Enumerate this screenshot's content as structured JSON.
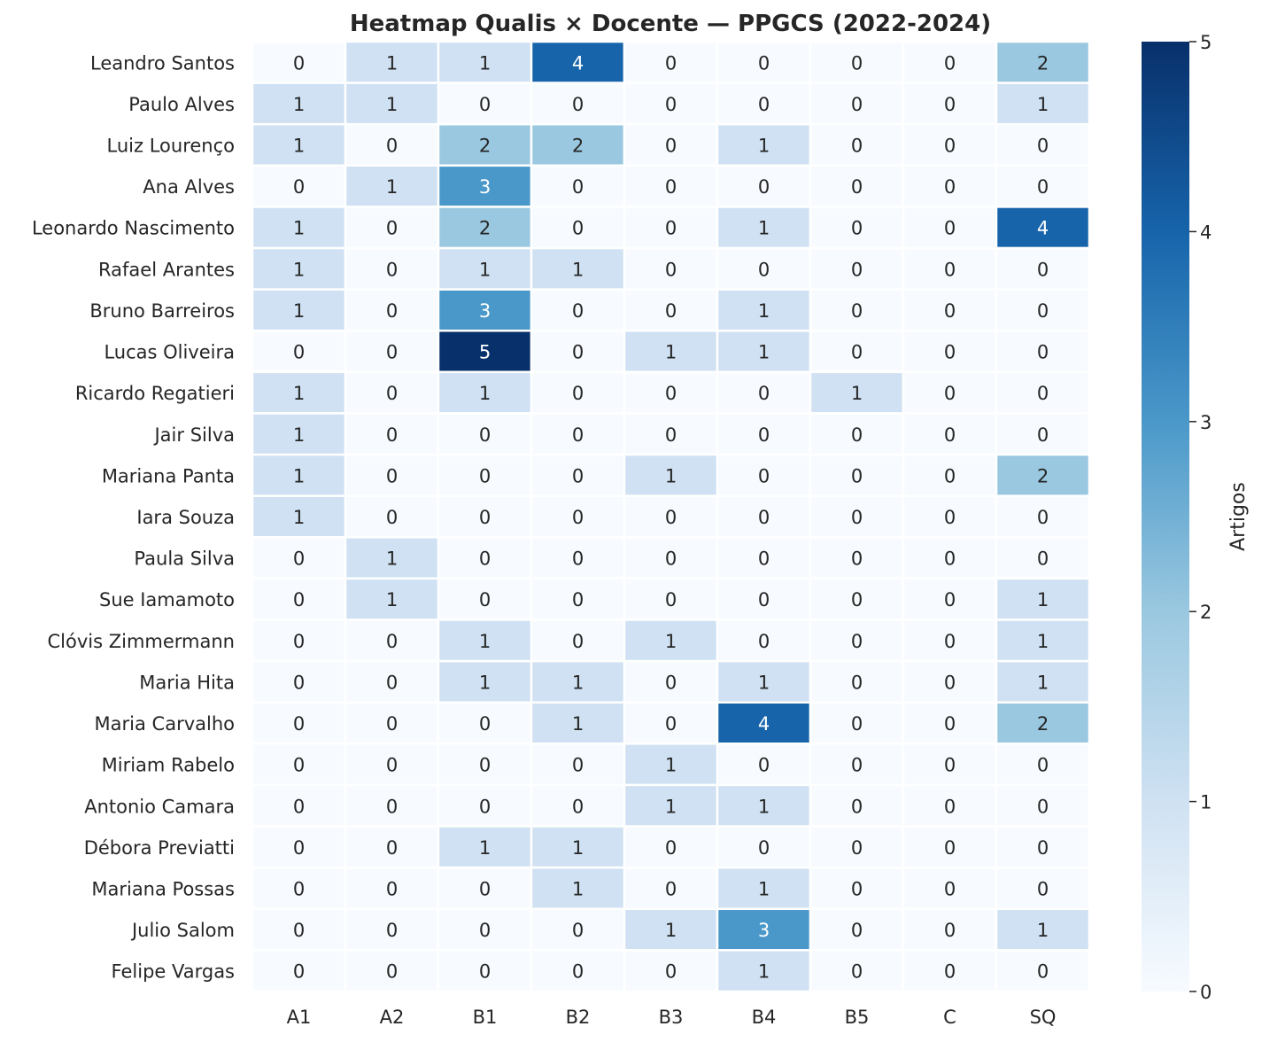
{
  "chart_data": {
    "type": "heatmap",
    "title": "Heatmap Qualis × Docente — PPGCS (2022-2024)",
    "xlabel": "",
    "ylabel": "",
    "columns": [
      "A1",
      "A2",
      "B1",
      "B2",
      "B3",
      "B4",
      "B5",
      "C",
      "SQ"
    ],
    "rows": [
      "Leandro Santos",
      "Paulo Alves",
      "Luiz Lourenço",
      "Ana Alves",
      "Leonardo Nascimento",
      "Rafael Arantes",
      "Bruno Barreiros",
      "Lucas Oliveira",
      "Ricardo Regatieri",
      "Jair Silva",
      "Mariana Panta",
      "Iara Souza",
      "Paula Silva",
      "Sue Iamamoto",
      "Clóvis Zimmermann",
      "Maria Hita",
      "Maria Carvalho",
      "Miriam Rabelo",
      "Antonio Camara",
      "Débora Previatti",
      "Mariana Possas",
      "Julio Salom",
      "Felipe Vargas"
    ],
    "values": [
      [
        0,
        1,
        1,
        4,
        0,
        0,
        0,
        0,
        2
      ],
      [
        1,
        1,
        0,
        0,
        0,
        0,
        0,
        0,
        1
      ],
      [
        1,
        0,
        2,
        2,
        0,
        1,
        0,
        0,
        0
      ],
      [
        0,
        1,
        3,
        0,
        0,
        0,
        0,
        0,
        0
      ],
      [
        1,
        0,
        2,
        0,
        0,
        1,
        0,
        0,
        4
      ],
      [
        1,
        0,
        1,
        1,
        0,
        0,
        0,
        0,
        0
      ],
      [
        1,
        0,
        3,
        0,
        0,
        1,
        0,
        0,
        0
      ],
      [
        0,
        0,
        5,
        0,
        1,
        1,
        0,
        0,
        0
      ],
      [
        1,
        0,
        1,
        0,
        0,
        0,
        1,
        0,
        0
      ],
      [
        1,
        0,
        0,
        0,
        0,
        0,
        0,
        0,
        0
      ],
      [
        1,
        0,
        0,
        0,
        1,
        0,
        0,
        0,
        2
      ],
      [
        1,
        0,
        0,
        0,
        0,
        0,
        0,
        0,
        0
      ],
      [
        0,
        1,
        0,
        0,
        0,
        0,
        0,
        0,
        0
      ],
      [
        0,
        1,
        0,
        0,
        0,
        0,
        0,
        0,
        1
      ],
      [
        0,
        0,
        1,
        0,
        1,
        0,
        0,
        0,
        1
      ],
      [
        0,
        0,
        1,
        1,
        0,
        1,
        0,
        0,
        1
      ],
      [
        0,
        0,
        0,
        1,
        0,
        4,
        0,
        0,
        2
      ],
      [
        0,
        0,
        0,
        0,
        1,
        0,
        0,
        0,
        0
      ],
      [
        0,
        0,
        0,
        0,
        1,
        1,
        0,
        0,
        0
      ],
      [
        0,
        0,
        1,
        1,
        0,
        0,
        0,
        0,
        0
      ],
      [
        0,
        0,
        0,
        1,
        0,
        1,
        0,
        0,
        0
      ],
      [
        0,
        0,
        0,
        0,
        1,
        3,
        0,
        0,
        1
      ],
      [
        0,
        0,
        0,
        0,
        0,
        1,
        0,
        0,
        0
      ]
    ],
    "colorbar": {
      "label": "Artigos",
      "range": [
        0,
        5
      ],
      "ticks": [
        "0",
        "1",
        "2",
        "3",
        "4",
        "5"
      ],
      "colormap": "Blues",
      "colors": [
        "#f7fbff",
        "#cfe1f2",
        "#9ac8e0",
        "#4a98c9",
        "#1764ab",
        "#08306b"
      ]
    }
  }
}
